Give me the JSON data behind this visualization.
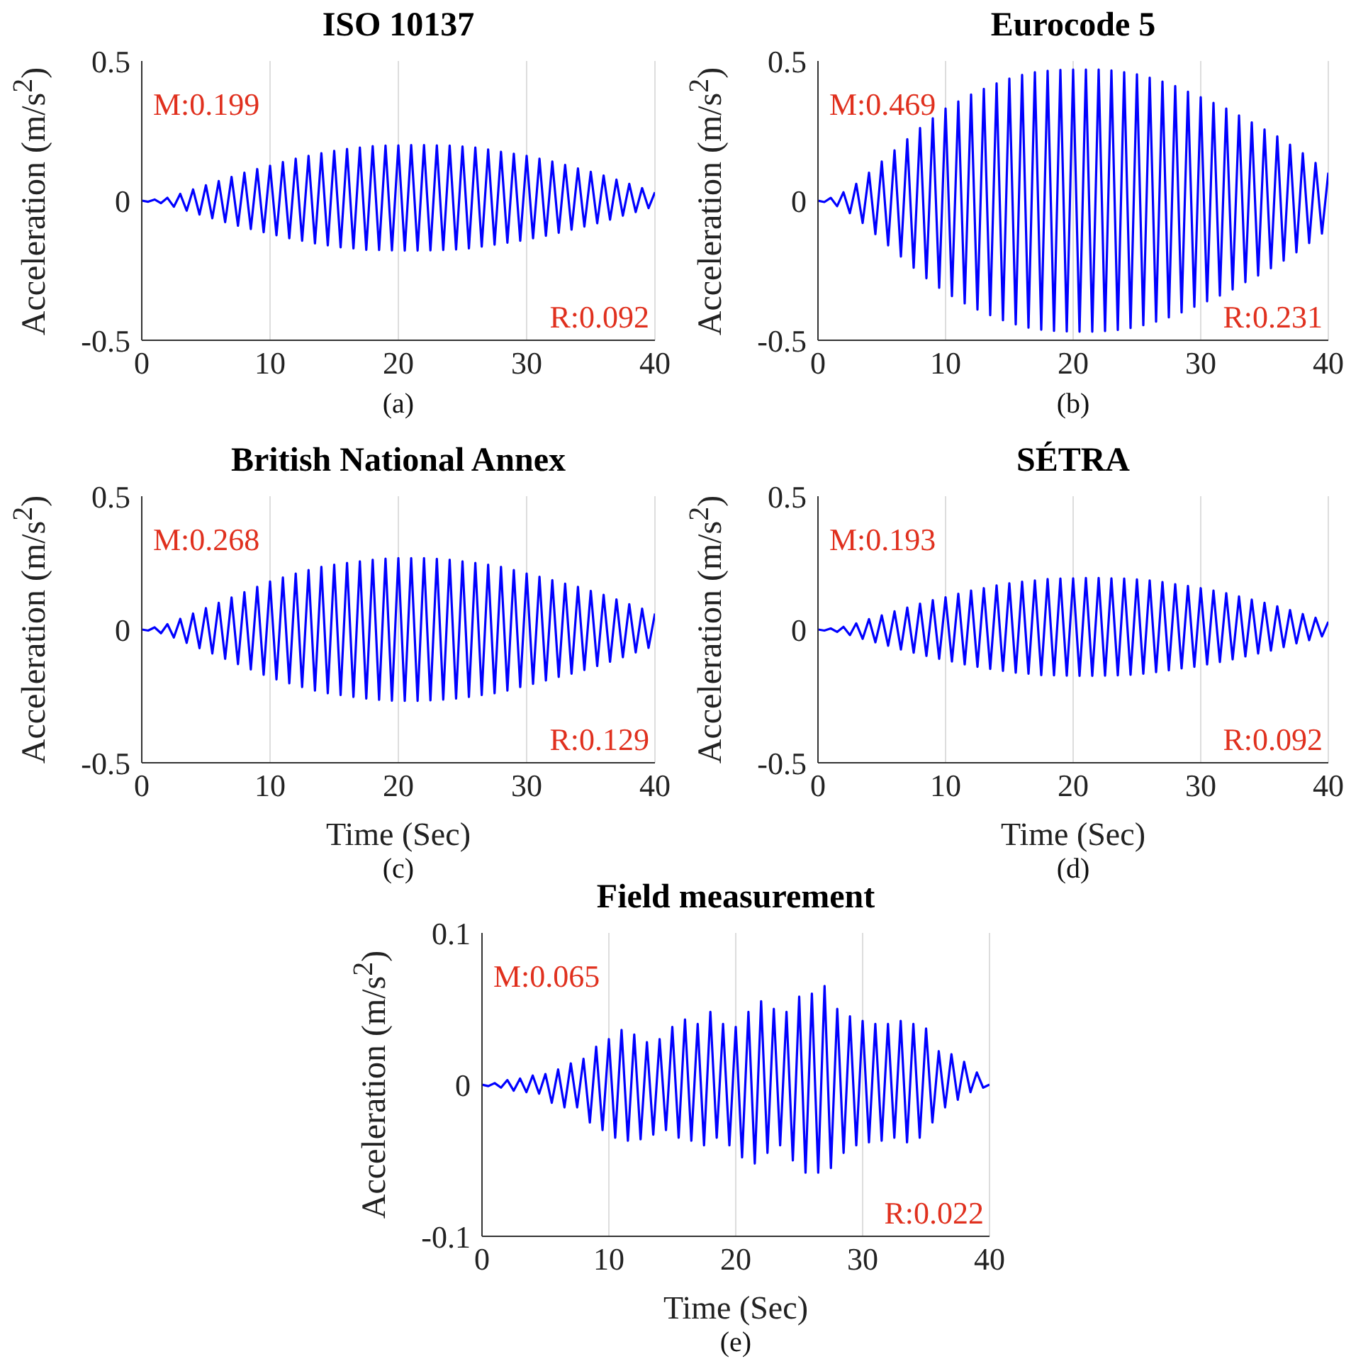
{
  "chart_data": [
    {
      "type": "line",
      "title": "ISO 10137",
      "ylabel": "Acceleration (m/s$^{2}$)",
      "annotations": [
        "M:0.199",
        "R:0.092",
        "(a)"
      ],
      "color": "#0000ff",
      "xlim": [
        0,
        40
      ],
      "xticks": [
        0,
        10,
        20,
        30,
        40
      ],
      "ylim": [
        -0.5,
        0.5
      ],
      "yticks": [
        -0.5,
        0,
        0.5
      ],
      "grid": "x",
      "x": [
        0,
        0.5,
        1,
        1.5,
        2,
        2.5,
        3,
        3.5,
        4,
        4.5,
        5,
        5.5,
        6,
        6.5,
        7,
        7.5,
        8,
        8.5,
        9,
        9.5,
        10,
        10.5,
        11,
        11.5,
        12,
        12.5,
        13,
        13.5,
        14,
        14.5,
        15,
        15.5,
        16,
        16.5,
        17,
        17.5,
        18,
        18.5,
        19,
        19.5,
        20,
        20.5,
        21,
        21.5,
        22,
        22.5,
        23,
        23.5,
        24,
        24.5,
        25,
        25.5,
        26,
        26.5,
        27,
        27.5,
        28,
        28.5,
        29,
        29.5,
        30,
        30.5,
        31,
        31.5,
        32,
        32.5,
        33,
        33.5,
        34,
        34.5,
        35,
        35.5,
        36,
        36.5,
        37,
        37.5,
        38,
        38.5,
        39,
        39.5,
        40
      ],
      "values": [
        0,
        -0.004,
        0.004,
        -0.009,
        0.01,
        -0.022,
        0.024,
        -0.036,
        0.04,
        -0.05,
        0.055,
        -0.063,
        0.07,
        -0.077,
        0.085,
        -0.09,
        0.1,
        -0.102,
        0.113,
        -0.113,
        0.125,
        -0.124,
        0.138,
        -0.135,
        0.15,
        -0.144,
        0.16,
        -0.153,
        0.17,
        -0.16,
        0.178,
        -0.167,
        0.185,
        -0.171,
        0.19,
        -0.176,
        0.195,
        -0.177,
        0.197,
        -0.178,
        0.198,
        -0.179,
        0.199,
        -0.179,
        0.199,
        -0.178,
        0.198,
        -0.177,
        0.197,
        -0.175,
        0.194,
        -0.171,
        0.19,
        -0.165,
        0.183,
        -0.158,
        0.175,
        -0.151,
        0.168,
        -0.144,
        0.16,
        -0.135,
        0.15,
        -0.126,
        0.14,
        -0.115,
        0.128,
        -0.104,
        0.115,
        -0.093,
        0.103,
        -0.081,
        0.09,
        -0.068,
        0.075,
        -0.054,
        0.06,
        -0.041,
        0.045,
        -0.027,
        0.03
      ]
    },
    {
      "type": "line",
      "title": "Eurocode 5",
      "ylabel": "Acceleration (m/s$^{2}$)",
      "annotations": [
        "M:0.469",
        "R:0.231",
        "(b)"
      ],
      "color": "#0000ff",
      "xlim": [
        0,
        40
      ],
      "xticks": [
        0,
        10,
        20,
        30,
        40
      ],
      "ylim": [
        -0.5,
        0.5
      ],
      "yticks": [
        -0.5,
        0,
        0.5
      ],
      "grid": "x",
      "x": [
        0,
        0.5,
        1,
        1.5,
        2,
        2.5,
        3,
        3.5,
        4,
        4.5,
        5,
        5.5,
        6,
        6.5,
        7,
        7.5,
        8,
        8.5,
        9,
        9.5,
        10,
        10.5,
        11,
        11.5,
        12,
        12.5,
        13,
        13.5,
        14,
        14.5,
        15,
        15.5,
        16,
        16.5,
        17,
        17.5,
        18,
        18.5,
        19,
        19.5,
        20,
        20.5,
        21,
        21.5,
        22,
        22.5,
        23,
        23.5,
        24,
        24.5,
        25,
        25.5,
        26,
        26.5,
        27,
        27.5,
        28,
        28.5,
        29,
        29.5,
        30,
        30.5,
        31,
        31.5,
        32,
        32.5,
        33,
        33.5,
        34,
        34.5,
        35,
        35.5,
        36,
        36.5,
        37,
        37.5,
        38,
        38.5,
        39,
        39.5,
        40
      ],
      "values": [
        0,
        -0.005,
        0.01,
        -0.02,
        0.03,
        -0.045,
        0.06,
        -0.08,
        0.1,
        -0.12,
        0.14,
        -0.16,
        0.18,
        -0.2,
        0.22,
        -0.24,
        0.26,
        -0.278,
        0.295,
        -0.312,
        0.33,
        -0.342,
        0.355,
        -0.368,
        0.38,
        -0.39,
        0.4,
        -0.41,
        0.42,
        -0.428,
        0.437,
        -0.443,
        0.45,
        -0.455,
        0.46,
        -0.462,
        0.465,
        -0.466,
        0.468,
        -0.468,
        0.469,
        -0.469,
        0.469,
        -0.469,
        0.469,
        -0.467,
        0.466,
        -0.463,
        0.46,
        -0.456,
        0.452,
        -0.446,
        0.44,
        -0.433,
        0.426,
        -0.418,
        0.41,
        -0.4,
        0.39,
        -0.38,
        0.37,
        -0.36,
        0.35,
        -0.34,
        0.33,
        -0.318,
        0.305,
        -0.292,
        0.28,
        -0.268,
        0.255,
        -0.242,
        0.23,
        -0.215,
        0.2,
        -0.185,
        0.17,
        -0.152,
        0.135,
        -0.118,
        0.1
      ]
    },
    {
      "type": "line",
      "title": "British National Annex",
      "xlabel": "Time (Sec)",
      "ylabel": "Acceleration (m/s$^{2}$)",
      "annotations": [
        "M:0.268",
        "R:0.129",
        "(c)"
      ],
      "color": "#0000ff",
      "xlim": [
        0,
        40
      ],
      "xticks": [
        0,
        10,
        20,
        30,
        40
      ],
      "ylim": [
        -0.5,
        0.5
      ],
      "yticks": [
        -0.5,
        0,
        0.5
      ],
      "grid": "x",
      "x": [
        0,
        0.5,
        1,
        1.5,
        2,
        2.5,
        3,
        3.5,
        4,
        4.5,
        5,
        5.5,
        6,
        6.5,
        7,
        7.5,
        8,
        8.5,
        9,
        9.5,
        10,
        10.5,
        11,
        11.5,
        12,
        12.5,
        13,
        13.5,
        14,
        14.5,
        15,
        15.5,
        16,
        16.5,
        17,
        17.5,
        18,
        18.5,
        19,
        19.5,
        20,
        20.5,
        21,
        21.5,
        22,
        22.5,
        23,
        23.5,
        24,
        24.5,
        25,
        25.5,
        26,
        26.5,
        27,
        27.5,
        28,
        28.5,
        29,
        29.5,
        30,
        30.5,
        31,
        31.5,
        32,
        32.5,
        33,
        33.5,
        34,
        34.5,
        35,
        35.5,
        36,
        36.5,
        37,
        37.5,
        38,
        38.5,
        39,
        39.5,
        40
      ],
      "values": [
        0,
        -0.004,
        0.008,
        -0.014,
        0.02,
        -0.03,
        0.04,
        -0.05,
        0.06,
        -0.07,
        0.08,
        -0.09,
        0.1,
        -0.11,
        0.12,
        -0.13,
        0.14,
        -0.15,
        0.16,
        -0.17,
        0.18,
        -0.187,
        0.195,
        -0.202,
        0.21,
        -0.216,
        0.223,
        -0.229,
        0.235,
        -0.239,
        0.243,
        -0.246,
        0.25,
        -0.253,
        0.256,
        -0.259,
        0.262,
        -0.264,
        0.266,
        -0.267,
        0.268,
        -0.268,
        0.268,
        -0.268,
        0.268,
        -0.266,
        0.265,
        -0.263,
        0.262,
        -0.259,
        0.256,
        -0.253,
        0.25,
        -0.246,
        0.243,
        -0.239,
        0.235,
        -0.229,
        0.223,
        -0.216,
        0.21,
        -0.204,
        0.198,
        -0.191,
        0.185,
        -0.178,
        0.172,
        -0.166,
        0.16,
        -0.152,
        0.145,
        -0.137,
        0.13,
        -0.121,
        0.113,
        -0.104,
        0.095,
        -0.086,
        0.078,
        -0.069,
        0.06
      ]
    },
    {
      "type": "line",
      "title": "SÉTRA",
      "xlabel": "Time (Sec)",
      "ylabel": "Acceleration (m/s$^{2}$)",
      "annotations": [
        "M:0.193",
        "R:0.092",
        "(d)"
      ],
      "color": "#0000ff",
      "xlim": [
        0,
        40
      ],
      "xticks": [
        0,
        10,
        20,
        30,
        40
      ],
      "ylim": [
        -0.5,
        0.5
      ],
      "yticks": [
        -0.5,
        0,
        0.5
      ],
      "grid": "x",
      "x": [
        0,
        0.5,
        1,
        1.5,
        2,
        2.5,
        3,
        3.5,
        4,
        4.5,
        5,
        5.5,
        6,
        6.5,
        7,
        7.5,
        8,
        8.5,
        9,
        9.5,
        10,
        10.5,
        11,
        11.5,
        12,
        12.5,
        13,
        13.5,
        14,
        14.5,
        15,
        15.5,
        16,
        16.5,
        17,
        17.5,
        18,
        18.5,
        19,
        19.5,
        20,
        20.5,
        21,
        21.5,
        22,
        22.5,
        23,
        23.5,
        24,
        24.5,
        25,
        25.5,
        26,
        26.5,
        27,
        27.5,
        28,
        28.5,
        29,
        29.5,
        30,
        30.5,
        31,
        31.5,
        32,
        32.5,
        33,
        33.5,
        34,
        34.5,
        35,
        35.5,
        36,
        36.5,
        37,
        37.5,
        38,
        38.5,
        39,
        39.5,
        40
      ],
      "values": [
        0,
        -0.004,
        0.004,
        -0.009,
        0.01,
        -0.021,
        0.023,
        -0.035,
        0.039,
        -0.048,
        0.053,
        -0.061,
        0.068,
        -0.075,
        0.082,
        -0.087,
        0.097,
        -0.099,
        0.11,
        -0.11,
        0.121,
        -0.12,
        0.134,
        -0.131,
        0.146,
        -0.14,
        0.155,
        -0.148,
        0.165,
        -0.155,
        0.173,
        -0.162,
        0.179,
        -0.166,
        0.184,
        -0.171,
        0.189,
        -0.172,
        0.191,
        -0.173,
        0.192,
        -0.174,
        0.193,
        -0.174,
        0.193,
        -0.173,
        0.192,
        -0.172,
        0.191,
        -0.17,
        0.188,
        -0.166,
        0.184,
        -0.16,
        0.178,
        -0.153,
        0.17,
        -0.146,
        0.163,
        -0.14,
        0.155,
        -0.131,
        0.146,
        -0.122,
        0.136,
        -0.112,
        0.124,
        -0.101,
        0.112,
        -0.09,
        0.1,
        -0.079,
        0.087,
        -0.066,
        0.073,
        -0.052,
        0.058,
        -0.04,
        0.044,
        -0.026,
        0.029
      ]
    },
    {
      "type": "line",
      "title": "Field measurement",
      "xlabel": "Time (Sec)",
      "ylabel": "Acceleration (m/s$^{2}$)",
      "annotations": [
        "M:0.065",
        "R:0.022",
        "(e)"
      ],
      "color": "#0000ff",
      "xlim": [
        0,
        40
      ],
      "xticks": [
        0,
        10,
        20,
        30,
        40
      ],
      "ylim": [
        -0.1,
        0.1
      ],
      "yticks": [
        -0.1,
        0,
        0.1
      ],
      "grid": "x",
      "x": [
        0,
        0.5,
        1,
        1.5,
        2,
        2.5,
        3,
        3.5,
        4,
        4.5,
        5,
        5.5,
        6,
        6.5,
        7,
        7.5,
        8,
        8.5,
        9,
        9.5,
        10,
        10.5,
        11,
        11.5,
        12,
        12.5,
        13,
        13.5,
        14,
        14.5,
        15,
        15.5,
        16,
        16.5,
        17,
        17.5,
        18,
        18.5,
        19,
        19.5,
        20,
        20.5,
        21,
        21.5,
        22,
        22.5,
        23,
        23.5,
        24,
        24.5,
        25,
        25.5,
        26,
        26.5,
        27,
        27.5,
        28,
        28.5,
        29,
        29.5,
        30,
        30.5,
        31,
        31.5,
        32,
        32.5,
        33,
        33.5,
        34,
        34.5,
        35,
        35.5,
        36,
        36.5,
        37,
        37.5,
        38,
        38.5,
        39,
        39.5,
        40
      ],
      "values": [
        0,
        -0.001,
        0.001,
        -0.002,
        0.003,
        -0.004,
        0.004,
        -0.005,
        0.006,
        -0.006,
        0.007,
        -0.012,
        0.01,
        -0.015,
        0.014,
        -0.015,
        0.017,
        -0.025,
        0.025,
        -0.03,
        0.03,
        -0.035,
        0.036,
        -0.037,
        0.033,
        -0.036,
        0.028,
        -0.033,
        0.03,
        -0.03,
        0.038,
        -0.035,
        0.043,
        -0.037,
        0.04,
        -0.04,
        0.048,
        -0.035,
        0.04,
        -0.04,
        0.038,
        -0.048,
        0.048,
        -0.052,
        0.055,
        -0.045,
        0.05,
        -0.04,
        0.048,
        -0.05,
        0.058,
        -0.058,
        0.06,
        -0.058,
        0.065,
        -0.055,
        0.05,
        -0.045,
        0.045,
        -0.04,
        0.042,
        -0.038,
        0.04,
        -0.037,
        0.04,
        -0.035,
        0.042,
        -0.038,
        0.04,
        -0.035,
        0.037,
        -0.025,
        0.022,
        -0.015,
        0.02,
        -0.01,
        0.015,
        -0.005,
        0.008,
        -0.002,
        0
      ]
    }
  ]
}
